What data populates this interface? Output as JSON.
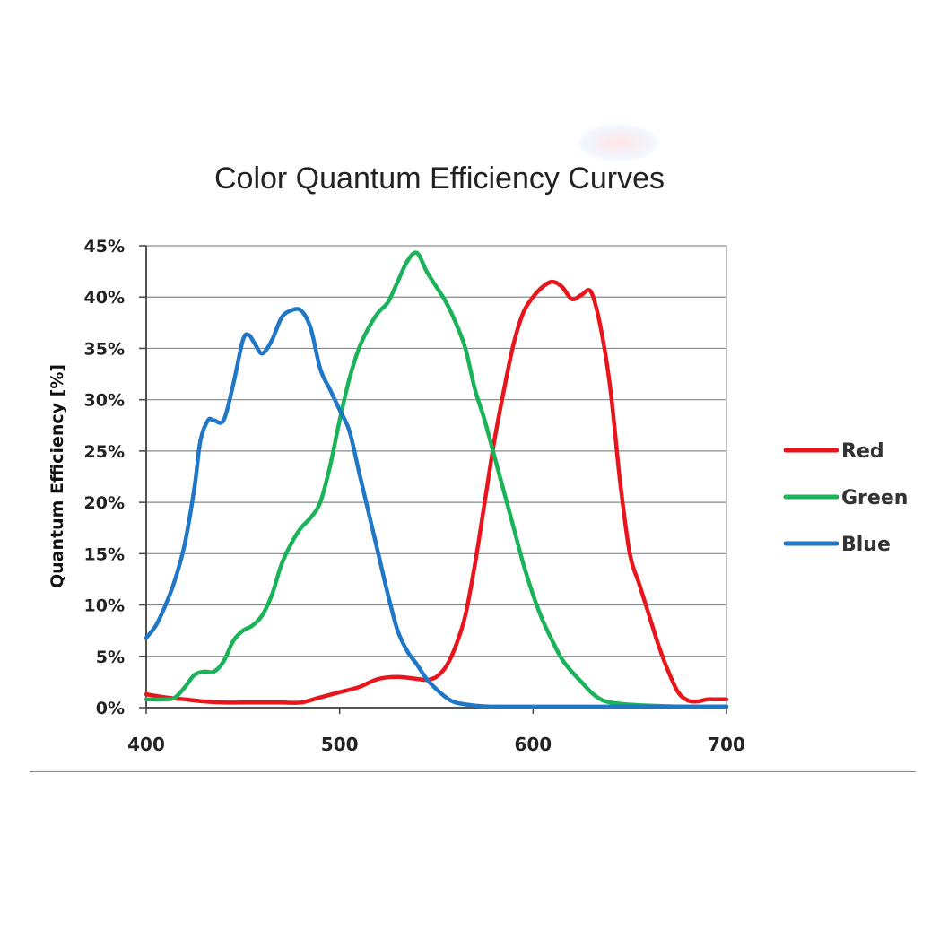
{
  "chart_data": {
    "type": "line",
    "title": "Color Quantum Efficiency Curves",
    "xlabel": "",
    "ylabel": "Quantum  Efficiency  [%]",
    "xlim": [
      400,
      700
    ],
    "ylim": [
      0,
      45
    ],
    "x_ticks": [
      "400",
      "500",
      "600",
      "700"
    ],
    "y_ticks": [
      "0%",
      "5%",
      "10%",
      "15%",
      "20%",
      "25%",
      "30%",
      "35%",
      "40%",
      "45%"
    ],
    "grid": true,
    "legend_position": "right",
    "series": [
      {
        "name": "Red",
        "color": "#e8161c",
        "points": [
          [
            400,
            1.3
          ],
          [
            410,
            1.0
          ],
          [
            420,
            0.8
          ],
          [
            430,
            0.6
          ],
          [
            440,
            0.5
          ],
          [
            450,
            0.5
          ],
          [
            460,
            0.5
          ],
          [
            470,
            0.5
          ],
          [
            480,
            0.5
          ],
          [
            490,
            1.0
          ],
          [
            500,
            1.5
          ],
          [
            510,
            2.0
          ],
          [
            520,
            2.8
          ],
          [
            530,
            3.0
          ],
          [
            540,
            2.8
          ],
          [
            545,
            2.7
          ],
          [
            550,
            3.0
          ],
          [
            555,
            4.0
          ],
          [
            560,
            6.0
          ],
          [
            565,
            9.0
          ],
          [
            570,
            14.0
          ],
          [
            575,
            20.0
          ],
          [
            580,
            26.0
          ],
          [
            585,
            31.0
          ],
          [
            590,
            35.5
          ],
          [
            595,
            38.5
          ],
          [
            600,
            40.0
          ],
          [
            605,
            41.0
          ],
          [
            610,
            41.5
          ],
          [
            615,
            41.0
          ],
          [
            620,
            39.8
          ],
          [
            625,
            40.2
          ],
          [
            630,
            40.5
          ],
          [
            635,
            37.0
          ],
          [
            640,
            31.0
          ],
          [
            645,
            22.0
          ],
          [
            650,
            15.0
          ],
          [
            655,
            12.0
          ],
          [
            660,
            9.0
          ],
          [
            665,
            6.0
          ],
          [
            670,
            3.5
          ],
          [
            675,
            1.5
          ],
          [
            680,
            0.7
          ],
          [
            685,
            0.6
          ],
          [
            690,
            0.8
          ],
          [
            695,
            0.8
          ],
          [
            700,
            0.8
          ]
        ]
      },
      {
        "name": "Green",
        "color": "#1ab35a",
        "points": [
          [
            400,
            0.8
          ],
          [
            410,
            0.8
          ],
          [
            415,
            1.0
          ],
          [
            420,
            2.0
          ],
          [
            425,
            3.2
          ],
          [
            430,
            3.5
          ],
          [
            435,
            3.5
          ],
          [
            440,
            4.5
          ],
          [
            445,
            6.5
          ],
          [
            450,
            7.5
          ],
          [
            455,
            8.0
          ],
          [
            460,
            9.0
          ],
          [
            465,
            11.0
          ],
          [
            470,
            14.0
          ],
          [
            475,
            16.0
          ],
          [
            480,
            17.5
          ],
          [
            485,
            18.5
          ],
          [
            490,
            20.0
          ],
          [
            495,
            23.5
          ],
          [
            500,
            28.0
          ],
          [
            505,
            32.0
          ],
          [
            510,
            35.0
          ],
          [
            515,
            37.0
          ],
          [
            520,
            38.5
          ],
          [
            525,
            39.5
          ],
          [
            530,
            41.5
          ],
          [
            535,
            43.5
          ],
          [
            540,
            44.3
          ],
          [
            545,
            42.5
          ],
          [
            550,
            41.0
          ],
          [
            555,
            39.5
          ],
          [
            560,
            37.5
          ],
          [
            565,
            35.0
          ],
          [
            570,
            31.0
          ],
          [
            575,
            28.0
          ],
          [
            580,
            24.5
          ],
          [
            585,
            21.0
          ],
          [
            590,
            17.5
          ],
          [
            595,
            14.0
          ],
          [
            600,
            11.0
          ],
          [
            605,
            8.5
          ],
          [
            610,
            6.5
          ],
          [
            615,
            4.7
          ],
          [
            620,
            3.5
          ],
          [
            625,
            2.5
          ],
          [
            630,
            1.5
          ],
          [
            635,
            0.8
          ],
          [
            640,
            0.5
          ],
          [
            650,
            0.3
          ],
          [
            660,
            0.2
          ],
          [
            680,
            0.1
          ],
          [
            700,
            0.1
          ]
        ]
      },
      {
        "name": "Blue",
        "color": "#1f77c6",
        "points": [
          [
            400,
            6.8
          ],
          [
            405,
            8.0
          ],
          [
            410,
            10.0
          ],
          [
            415,
            12.5
          ],
          [
            420,
            16.0
          ],
          [
            425,
            21.5
          ],
          [
            428,
            26.0
          ],
          [
            432,
            28.0
          ],
          [
            435,
            28.0
          ],
          [
            440,
            28.0
          ],
          [
            445,
            31.5
          ],
          [
            450,
            35.8
          ],
          [
            453,
            36.3
          ],
          [
            456,
            35.5
          ],
          [
            460,
            34.5
          ],
          [
            465,
            35.8
          ],
          [
            470,
            38.0
          ],
          [
            475,
            38.7
          ],
          [
            480,
            38.7
          ],
          [
            485,
            37.0
          ],
          [
            490,
            33.0
          ],
          [
            495,
            31.0
          ],
          [
            500,
            29.0
          ],
          [
            505,
            27.0
          ],
          [
            510,
            23.0
          ],
          [
            515,
            19.0
          ],
          [
            520,
            15.0
          ],
          [
            525,
            11.0
          ],
          [
            530,
            7.5
          ],
          [
            535,
            5.5
          ],
          [
            540,
            4.2
          ],
          [
            545,
            2.8
          ],
          [
            550,
            1.8
          ],
          [
            555,
            1.0
          ],
          [
            560,
            0.5
          ],
          [
            570,
            0.2
          ],
          [
            580,
            0.1
          ],
          [
            600,
            0.1
          ],
          [
            650,
            0.1
          ],
          [
            700,
            0.1
          ]
        ]
      }
    ]
  }
}
